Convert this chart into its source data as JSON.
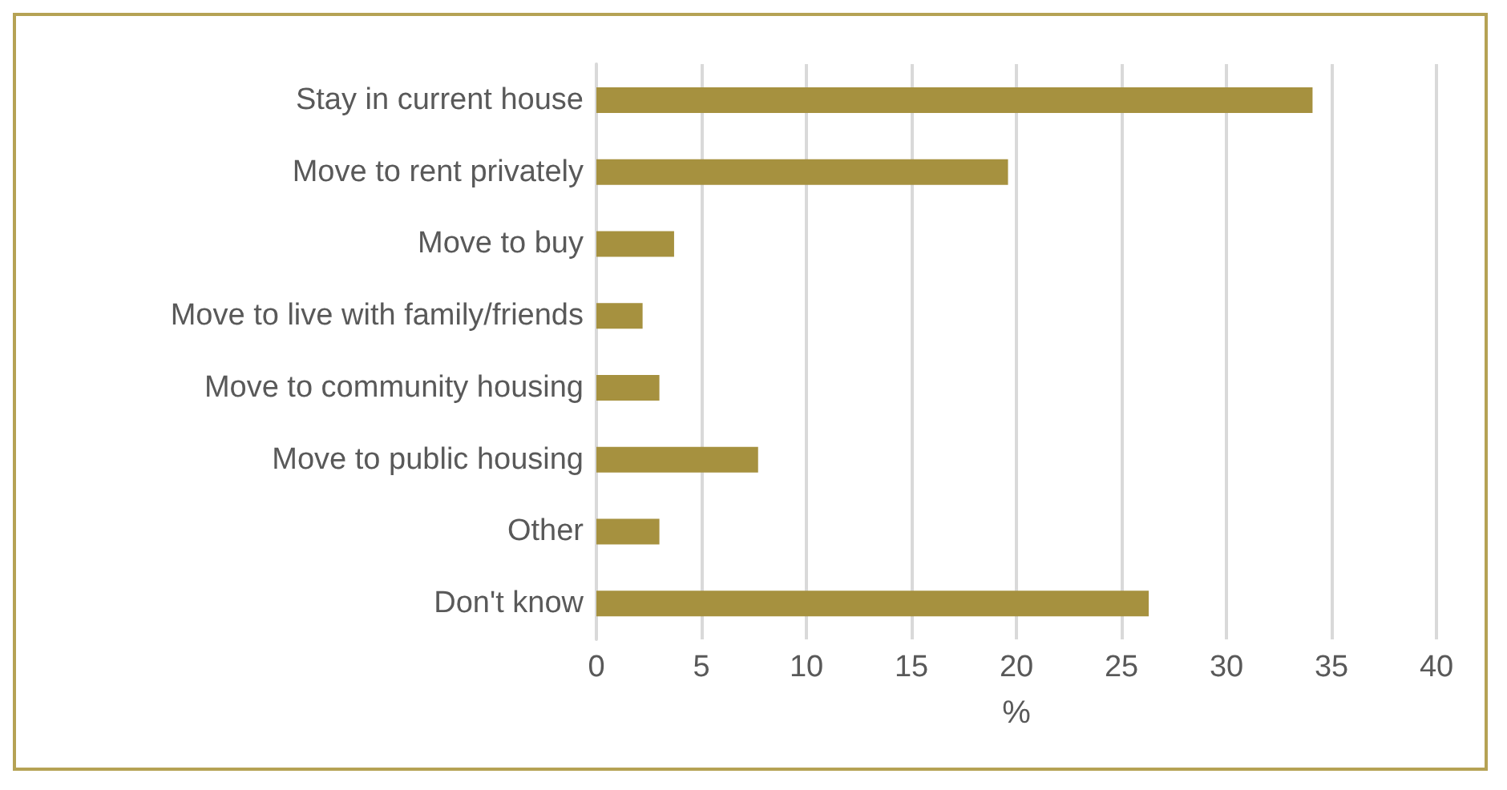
{
  "chart_data": {
    "type": "bar",
    "orientation": "horizontal",
    "xlabel": "%",
    "categories": [
      "Stay in current house",
      "Move to rent privately",
      "Move to buy",
      "Move to live with family/friends",
      "Move to community housing",
      "Move to public housing",
      "Other",
      "Don't know"
    ],
    "values": [
      34.1,
      19.6,
      3.7,
      2.2,
      3.0,
      7.7,
      3.0,
      26.3
    ],
    "color": "#a6913f",
    "xlim": [
      0,
      40
    ],
    "xticks": [
      0,
      5,
      10,
      15,
      20,
      25,
      30,
      35,
      40
    ],
    "grid": "x"
  }
}
